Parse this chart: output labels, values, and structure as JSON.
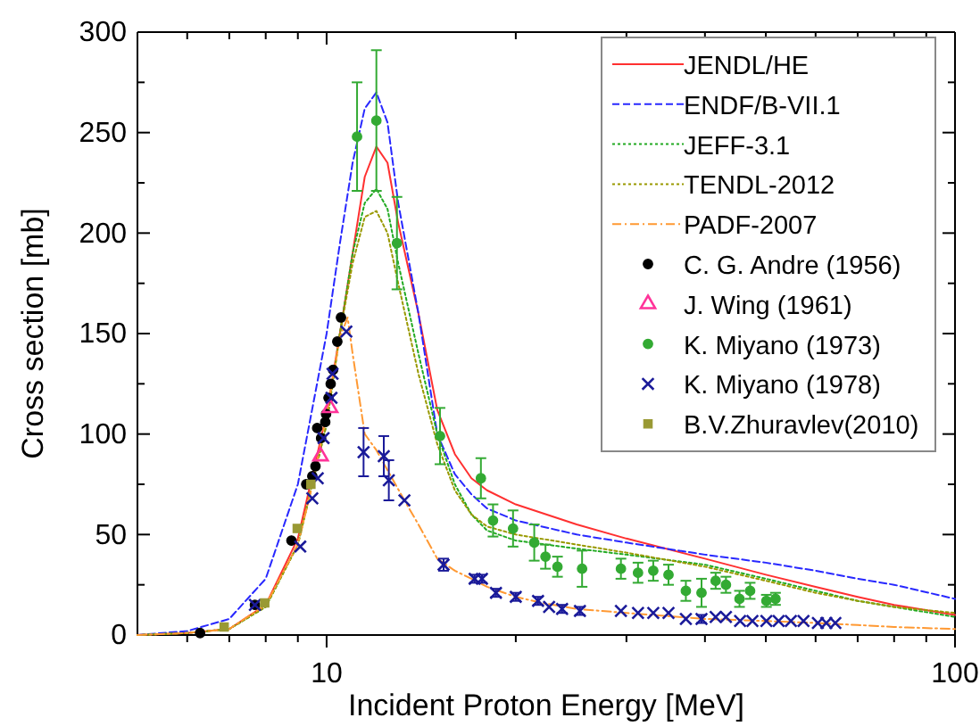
{
  "chart_data": {
    "type": "line",
    "xlabel": "Incident Proton Energy [MeV]",
    "ylabel": "Cross section [mb]",
    "log": "x",
    "legend": "top right",
    "xlim": [
      5,
      100
    ],
    "ylim": [
      0,
      300
    ],
    "xticks": [
      {
        "value": 6,
        "label": null
      },
      {
        "value": 7,
        "label": null
      },
      {
        "value": 8,
        "label": null
      },
      {
        "value": 9,
        "label": null
      },
      10,
      {
        "value": 20,
        "label": null
      },
      {
        "value": 30,
        "label": null
      },
      {
        "value": 40,
        "label": null
      },
      {
        "value": 50,
        "label": null
      },
      {
        "value": 60,
        "label": null
      },
      {
        "value": 70,
        "label": null
      },
      {
        "value": 80,
        "label": null
      },
      {
        "value": 90,
        "label": null
      },
      100
    ],
    "yticks": [
      0,
      {
        "value": 25,
        "label": null
      },
      50,
      {
        "value": 75,
        "label": null
      },
      100,
      {
        "value": 125,
        "label": null
      },
      150,
      {
        "value": 175,
        "label": null
      },
      200,
      {
        "value": 225,
        "label": null
      },
      250,
      {
        "value": 275,
        "label": null
      },
      300
    ],
    "series": [
      {
        "name": "JENDL/HE",
        "type": "line",
        "color": "#ff3030",
        "line_style": "solid",
        "marker": "none",
        "x": [
          5,
          6,
          7,
          8,
          9,
          10,
          10.5,
          11,
          11.5,
          12,
          12.5,
          13,
          14,
          15,
          16,
          17,
          18,
          20,
          25,
          30,
          40,
          50,
          60,
          70,
          80,
          100
        ],
        "values": [
          0,
          1,
          3,
          15,
          48,
          110,
          150,
          190,
          228,
          243,
          235,
          205,
          160,
          112,
          90,
          78,
          72,
          65,
          55,
          48,
          38,
          30,
          24,
          19,
          15,
          10
        ]
      },
      {
        "name": "ENDF/B-VII.1",
        "type": "line",
        "color": "#2828ff",
        "line_style": "dashed",
        "marker": "none",
        "x": [
          5,
          6,
          7,
          8,
          9,
          10,
          10.5,
          11,
          11.5,
          12,
          12.5,
          13,
          14,
          15,
          16,
          17,
          18,
          20,
          25,
          30,
          40,
          50,
          60,
          70,
          80,
          100
        ],
        "values": [
          0,
          2,
          8,
          28,
          75,
          150,
          195,
          235,
          262,
          270,
          255,
          215,
          160,
          100,
          80,
          70,
          63,
          57,
          50,
          46,
          40,
          36,
          32,
          28,
          25,
          18
        ]
      },
      {
        "name": "JEFF-3.1",
        "type": "line",
        "color": "#22aa22",
        "line_style": "dotted",
        "marker": "none",
        "x": [
          5,
          6,
          7,
          8,
          9,
          10,
          10.5,
          11,
          11.5,
          12,
          12.5,
          13,
          14,
          15,
          16,
          17,
          18,
          20,
          25,
          30,
          40,
          50,
          60,
          70,
          80,
          100
        ],
        "values": [
          0,
          1,
          3,
          14,
          45,
          105,
          150,
          190,
          215,
          222,
          212,
          185,
          140,
          100,
          75,
          60,
          52,
          47,
          43,
          40,
          35,
          28,
          22,
          17,
          14,
          9
        ]
      },
      {
        "name": "TENDL-2012",
        "type": "line",
        "color": "#999900",
        "line_style": "dotted",
        "marker": "none",
        "x": [
          5,
          6,
          7,
          8,
          9,
          10,
          10.5,
          11,
          11.5,
          12,
          12.5,
          13,
          14,
          15,
          16,
          17,
          18,
          20,
          25,
          30,
          40,
          50,
          60,
          70,
          80,
          100
        ],
        "values": [
          0,
          1,
          3,
          14,
          45,
          105,
          150,
          185,
          208,
          211,
          200,
          175,
          130,
          95,
          72,
          60,
          54,
          50,
          45,
          41,
          34,
          27,
          21,
          17,
          14,
          11
        ]
      },
      {
        "name": "PADF-2007",
        "type": "line",
        "color": "#ff9933",
        "line_style": "dashdot",
        "marker": "none",
        "x": [
          5,
          6,
          7,
          8,
          9,
          9.5,
          10,
          10.5,
          10.8,
          11,
          11.5,
          12,
          12.5,
          13.3,
          14,
          15,
          16,
          17,
          18,
          20,
          22,
          25,
          30,
          40,
          50,
          60,
          70,
          80,
          100
        ],
        "values": [
          0,
          1,
          3,
          15,
          45,
          75,
          110,
          148,
          158,
          140,
          100,
          92,
          82,
          67,
          55,
          38,
          32,
          28,
          24,
          19,
          16,
          13,
          11,
          8,
          7,
          6,
          5,
          4,
          3
        ]
      },
      {
        "name": "C. G. Andre (1956)",
        "type": "scatter",
        "color": "#000000",
        "marker": "circle",
        "x": [
          6.29,
          7.69,
          8.79,
          9.28,
          9.49,
          9.6,
          9.66,
          9.8,
          9.95,
          9.98,
          10.07,
          10.15,
          10.24,
          10.4,
          10.54
        ],
        "values": [
          1,
          15,
          47,
          75,
          79,
          84,
          103,
          98,
          106,
          110,
          118,
          125,
          132,
          146,
          158
        ]
      },
      {
        "name": "J. Wing (1961)",
        "type": "scatter",
        "color": "#ff3399",
        "marker": "triangle",
        "x": [
          9.78,
          10.13
        ],
        "values": [
          89,
          113
        ]
      },
      {
        "name": "K. Miyano (1973)",
        "type": "scatter",
        "color": "#33aa33",
        "marker": "circle",
        "x": [
          11.18,
          12.0,
          12.94,
          15.15,
          17.6,
          18.4,
          19.8,
          21.4,
          22.3,
          23.3,
          25.5,
          29.4,
          31.3,
          33.1,
          35.0,
          37.3,
          39.5,
          41.6,
          43.2,
          45.4,
          47.2,
          50.1,
          51.8
        ],
        "values": [
          248,
          256,
          195,
          99,
          78,
          57,
          53,
          46,
          39,
          34,
          33,
          33,
          31,
          32,
          30,
          22,
          21,
          27,
          25,
          18,
          22,
          17,
          18
        ],
        "errors": [
          27,
          35,
          23,
          14,
          10,
          8,
          9,
          9,
          6,
          5,
          9,
          5,
          5,
          5,
          5,
          5,
          7,
          4,
          4,
          4,
          4,
          3,
          3
        ]
      },
      {
        "name": "K. Miyano (1978)",
        "type": "scatter",
        "color": "#1a1a99",
        "marker": "cross",
        "x": [
          7.69,
          9.08,
          9.49,
          9.68,
          9.89,
          10.18,
          10.22,
          10.75,
          11.45,
          12.33,
          12.56,
          13.3,
          15.35,
          17.2,
          17.67,
          18.6,
          20.0,
          21.7,
          22.6,
          23.7,
          25.3,
          29.4,
          31.3,
          33.1,
          35.0,
          37.3,
          39.5,
          41.6,
          43.2,
          45.5,
          47.6,
          50.1,
          52.4,
          54.8,
          57.4,
          60.5,
          62.4,
          64.5
        ],
        "values": [
          15,
          44,
          68,
          78,
          98,
          118,
          130,
          151,
          91,
          89,
          77,
          67,
          35,
          28,
          28,
          21,
          19,
          17,
          14,
          13,
          12,
          12,
          11,
          11,
          11,
          8,
          8,
          9,
          9,
          7,
          7,
          7,
          7,
          7,
          7,
          6,
          6,
          6
        ],
        "errors": [
          null,
          null,
          null,
          null,
          null,
          null,
          null,
          null,
          12,
          10,
          10,
          null,
          3,
          2,
          2,
          2,
          2,
          2,
          null,
          2,
          2,
          null,
          null,
          null,
          null,
          null,
          2,
          null,
          null,
          null,
          null,
          null,
          null,
          null,
          null,
          null,
          null,
          null
        ]
      },
      {
        "name": "B.V.Zhuravlev(2010)",
        "type": "scatter",
        "color": "#999933",
        "marker": "square",
        "x": [
          6.87,
          7.97,
          8.98,
          9.44
        ],
        "values": [
          4,
          16,
          53,
          75
        ]
      }
    ]
  }
}
